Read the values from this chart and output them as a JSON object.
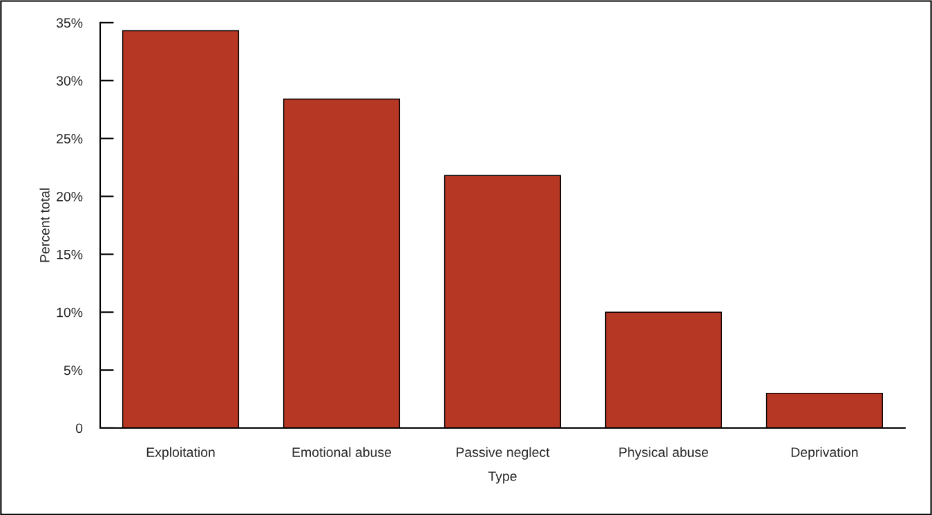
{
  "chart_data": {
    "type": "bar",
    "xlabel": "Type",
    "ylabel": "Percent total",
    "categories": [
      "Exploitation",
      "Emotional abuse",
      "Passive neglect",
      "Physical abuse",
      "Deprivation"
    ],
    "values": [
      34.3,
      28.4,
      21.8,
      10.0,
      3.0
    ],
    "color": "#b53724",
    "ylim": [
      0,
      35
    ],
    "yticks": [
      {
        "value": 0,
        "label": "0"
      },
      {
        "value": 5,
        "label": "5%"
      },
      {
        "value": 10,
        "label": "10%"
      },
      {
        "value": 15,
        "label": "15%"
      },
      {
        "value": 20,
        "label": "20%"
      },
      {
        "value": 25,
        "label": "25%"
      },
      {
        "value": 30,
        "label": "30%"
      },
      {
        "value": 35,
        "label": "35%"
      }
    ],
    "grid": false,
    "legend": false
  }
}
